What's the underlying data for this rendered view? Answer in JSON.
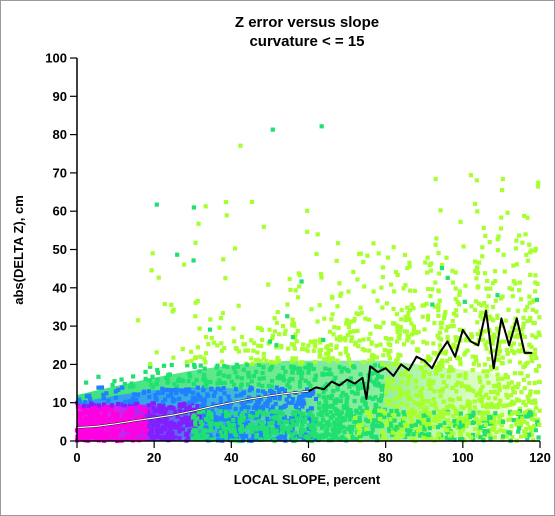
{
  "chart_data": {
    "type": "scatter",
    "title": "Z error versus slope",
    "subtitle": "curvature < = 15",
    "xlabel": "LOCAL SLOPE, percent",
    "ylabel": "abs(DELTA Z), cm",
    "xlim": [
      0,
      120
    ],
    "ylim": [
      0,
      100
    ],
    "x_ticks": [
      "0",
      "20",
      "40",
      "60",
      "80",
      "100",
      "120"
    ],
    "y_ticks": [
      "0",
      "10",
      "20",
      "30",
      "40",
      "50",
      "60",
      "70",
      "80",
      "90",
      "100"
    ],
    "grid": false,
    "legend": "none",
    "colors": {
      "low_density": "#a8ff30",
      "mid_density": "#20e070",
      "high_density": "#2080ff",
      "very_high_density": "#8020ff",
      "peak_density": "#ff00e0",
      "trend_black": "#000000",
      "trend_white": "#ffffff"
    },
    "series": [
      {
        "type": "line",
        "x": [
          0,
          5,
          10,
          15,
          20,
          25,
          30,
          35,
          40,
          45,
          50,
          55,
          60,
          62,
          64,
          66,
          68,
          70,
          72,
          74,
          75,
          76,
          78,
          80,
          82,
          84,
          86,
          88,
          90,
          92,
          94,
          96,
          98,
          100,
          102,
          104,
          106,
          108,
          110,
          112,
          114,
          116,
          118
        ],
        "y": [
          3.5,
          3.8,
          4.5,
          5.3,
          6.0,
          6.8,
          7.8,
          9.0,
          10.0,
          11.0,
          11.8,
          12.5,
          13.0,
          14.0,
          13.5,
          15.5,
          14.5,
          16.0,
          15.0,
          16.5,
          11.0,
          19.5,
          18.0,
          19.0,
          17.0,
          20.0,
          18.5,
          22.0,
          21.0,
          19.0,
          23.0,
          26.0,
          22.0,
          29.0,
          26.0,
          25.0,
          34.0,
          19.0,
          32.0,
          25.0,
          32.0,
          23.0,
          23.0
        ]
      }
    ]
  }
}
